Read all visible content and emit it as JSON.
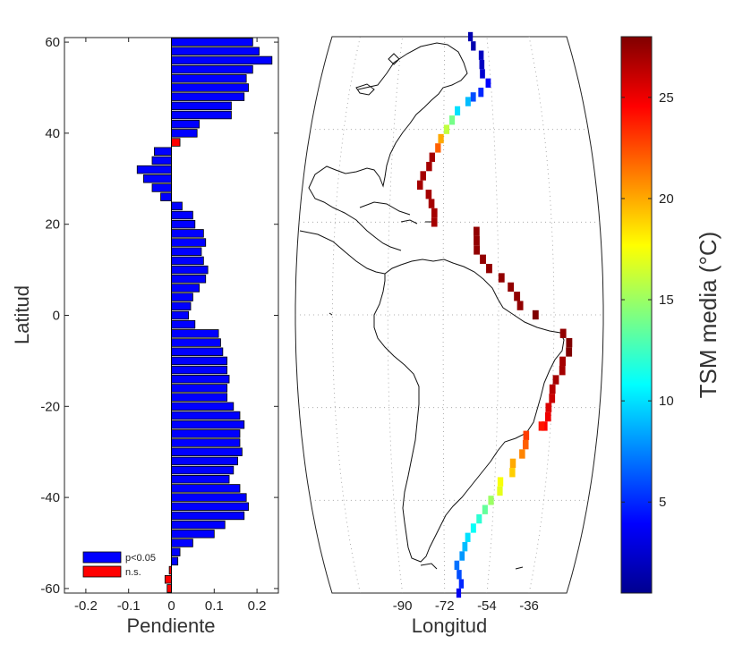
{
  "chart_data": [
    {
      "type": "bar",
      "orientation": "horizontal",
      "xlabel": "Pendiente",
      "ylabel": "Latitud",
      "xlim": [
        -0.25,
        0.25
      ],
      "ylim": [
        -61,
        61
      ],
      "xticks": [
        -0.2,
        -0.1,
        0,
        0.1,
        0.2
      ],
      "xtick_labels": [
        "-0.2",
        "-0.1",
        "0",
        "0.1",
        "0.2"
      ],
      "yticks": [
        -60,
        -40,
        -20,
        0,
        20,
        40,
        60
      ],
      "ytick_labels": [
        "-60",
        "-40",
        "-20",
        "0",
        "20",
        "40",
        "60"
      ],
      "bar_height_deg": 1.7,
      "legend": {
        "location": "bottom-left",
        "entries": [
          {
            "label": "p<0.05",
            "color": "#0000ff"
          },
          {
            "label": "n.s.",
            "color": "#ff0000"
          }
        ]
      },
      "bars": [
        {
          "lat": 60,
          "value": 0.19,
          "sig": true
        },
        {
          "lat": 58,
          "value": 0.205,
          "sig": true
        },
        {
          "lat": 56,
          "value": 0.235,
          "sig": true
        },
        {
          "lat": 54,
          "value": 0.19,
          "sig": true
        },
        {
          "lat": 52,
          "value": 0.175,
          "sig": true
        },
        {
          "lat": 50,
          "value": 0.18,
          "sig": true
        },
        {
          "lat": 48,
          "value": 0.17,
          "sig": true
        },
        {
          "lat": 46,
          "value": 0.14,
          "sig": true
        },
        {
          "lat": 44,
          "value": 0.14,
          "sig": true
        },
        {
          "lat": 42,
          "value": 0.065,
          "sig": true
        },
        {
          "lat": 40,
          "value": 0.06,
          "sig": true
        },
        {
          "lat": 38,
          "value": 0.02,
          "sig": false
        },
        {
          "lat": 36,
          "value": -0.04,
          "sig": true
        },
        {
          "lat": 34,
          "value": -0.045,
          "sig": true
        },
        {
          "lat": 32,
          "value": -0.08,
          "sig": true
        },
        {
          "lat": 30,
          "value": -0.065,
          "sig": true
        },
        {
          "lat": 28,
          "value": -0.045,
          "sig": true
        },
        {
          "lat": 26,
          "value": -0.025,
          "sig": true
        },
        {
          "lat": 24,
          "value": 0.025,
          "sig": true
        },
        {
          "lat": 22,
          "value": 0.05,
          "sig": true
        },
        {
          "lat": 20,
          "value": 0.055,
          "sig": true
        },
        {
          "lat": 18,
          "value": 0.075,
          "sig": true
        },
        {
          "lat": 16,
          "value": 0.08,
          "sig": true
        },
        {
          "lat": 14,
          "value": 0.07,
          "sig": true
        },
        {
          "lat": 12,
          "value": 0.075,
          "sig": true
        },
        {
          "lat": 10,
          "value": 0.085,
          "sig": true
        },
        {
          "lat": 8,
          "value": 0.08,
          "sig": true
        },
        {
          "lat": 6,
          "value": 0.065,
          "sig": true
        },
        {
          "lat": 4,
          "value": 0.05,
          "sig": true
        },
        {
          "lat": 2,
          "value": 0.045,
          "sig": true
        },
        {
          "lat": 0,
          "value": 0.04,
          "sig": true
        },
        {
          "lat": -2,
          "value": 0.055,
          "sig": true
        },
        {
          "lat": -4,
          "value": 0.11,
          "sig": true
        },
        {
          "lat": -6,
          "value": 0.115,
          "sig": true
        },
        {
          "lat": -8,
          "value": 0.12,
          "sig": true
        },
        {
          "lat": -10,
          "value": 0.13,
          "sig": true
        },
        {
          "lat": -12,
          "value": 0.13,
          "sig": true
        },
        {
          "lat": -14,
          "value": 0.135,
          "sig": true
        },
        {
          "lat": -16,
          "value": 0.13,
          "sig": true
        },
        {
          "lat": -18,
          "value": 0.13,
          "sig": true
        },
        {
          "lat": -20,
          "value": 0.145,
          "sig": true
        },
        {
          "lat": -22,
          "value": 0.16,
          "sig": true
        },
        {
          "lat": -24,
          "value": 0.17,
          "sig": true
        },
        {
          "lat": -26,
          "value": 0.16,
          "sig": true
        },
        {
          "lat": -28,
          "value": 0.16,
          "sig": true
        },
        {
          "lat": -30,
          "value": 0.165,
          "sig": true
        },
        {
          "lat": -32,
          "value": 0.155,
          "sig": true
        },
        {
          "lat": -34,
          "value": 0.145,
          "sig": true
        },
        {
          "lat": -36,
          "value": 0.135,
          "sig": true
        },
        {
          "lat": -38,
          "value": 0.16,
          "sig": true
        },
        {
          "lat": -40,
          "value": 0.175,
          "sig": true
        },
        {
          "lat": -42,
          "value": 0.18,
          "sig": true
        },
        {
          "lat": -44,
          "value": 0.17,
          "sig": true
        },
        {
          "lat": -46,
          "value": 0.125,
          "sig": true
        },
        {
          "lat": -48,
          "value": 0.1,
          "sig": true
        },
        {
          "lat": -50,
          "value": 0.05,
          "sig": true
        },
        {
          "lat": -52,
          "value": 0.02,
          "sig": true
        },
        {
          "lat": -54,
          "value": 0.015,
          "sig": true
        },
        {
          "lat": -56,
          "value": -0.005,
          "sig": false
        },
        {
          "lat": -58,
          "value": -0.015,
          "sig": false
        },
        {
          "lat": -60,
          "value": -0.01,
          "sig": false
        }
      ]
    },
    {
      "type": "map",
      "xlabel": "Longitud",
      "xticks": [
        -90,
        -72,
        -54,
        -36
      ],
      "xtick_labels": [
        "-90",
        "-72",
        "-54",
        "-36"
      ],
      "lon_range": [
        -120,
        -20
      ],
      "lat_range": [
        -60,
        60
      ],
      "cell_size_deg": 2,
      "colorbar": {
        "label": "TSM media (°C)",
        "range": [
          0.5,
          28
        ],
        "ticks": [
          5,
          10,
          15,
          20,
          25
        ],
        "tick_labels": [
          "5",
          "10",
          "15",
          "20",
          "25"
        ],
        "colormap": "jet"
      },
      "cells": [
        {
          "lon": -61,
          "lat": 60,
          "sst": 1.5
        },
        {
          "lon": -60,
          "lat": 58,
          "sst": 1.5
        },
        {
          "lon": -57,
          "lat": 56,
          "sst": 2
        },
        {
          "lon": -57,
          "lat": 54,
          "sst": 2
        },
        {
          "lon": -57,
          "lat": 52,
          "sst": 2.5
        },
        {
          "lon": -55,
          "lat": 50,
          "sst": 4
        },
        {
          "lon": -58,
          "lat": 48,
          "sst": 5
        },
        {
          "lon": -61,
          "lat": 47,
          "sst": 6
        },
        {
          "lon": -63,
          "lat": 46,
          "sst": 9
        },
        {
          "lon": -67,
          "lat": 44,
          "sst": 10
        },
        {
          "lon": -69,
          "lat": 42,
          "sst": 14
        },
        {
          "lon": -71,
          "lat": 40,
          "sst": 16
        },
        {
          "lon": -73,
          "lat": 38,
          "sst": 20
        },
        {
          "lon": -74,
          "lat": 36,
          "sst": 22
        },
        {
          "lon": -76,
          "lat": 34,
          "sst": 27
        },
        {
          "lon": -77,
          "lat": 32,
          "sst": 27
        },
        {
          "lon": -79,
          "lat": 30,
          "sst": 27
        },
        {
          "lon": -80,
          "lat": 28,
          "sst": 27
        },
        {
          "lon": -77,
          "lat": 26,
          "sst": 27
        },
        {
          "lon": -76,
          "lat": 24,
          "sst": 27
        },
        {
          "lon": -75,
          "lat": 22,
          "sst": 27
        },
        {
          "lon": -75,
          "lat": 20,
          "sst": 27
        },
        {
          "lon": -61,
          "lat": 18,
          "sst": 27.5
        },
        {
          "lon": -61,
          "lat": 16,
          "sst": 27.5
        },
        {
          "lon": -61,
          "lat": 14,
          "sst": 27.5
        },
        {
          "lon": -59,
          "lat": 12,
          "sst": 27.5
        },
        {
          "lon": -57,
          "lat": 10,
          "sst": 27.5
        },
        {
          "lon": -53,
          "lat": 8,
          "sst": 27.5
        },
        {
          "lon": -50,
          "lat": 6,
          "sst": 27.5
        },
        {
          "lon": -48,
          "lat": 4,
          "sst": 27.5
        },
        {
          "lon": -47,
          "lat": 2,
          "sst": 27.5
        },
        {
          "lon": -42,
          "lat": 0,
          "sst": 28
        },
        {
          "lon": -33,
          "lat": -4,
          "sst": 27.5
        },
        {
          "lon": -31,
          "lat": -6,
          "sst": 28
        },
        {
          "lon": -31,
          "lat": -8,
          "sst": 28
        },
        {
          "lon": -33,
          "lat": -10,
          "sst": 27
        },
        {
          "lon": -33,
          "lat": -12,
          "sst": 27
        },
        {
          "lon": -35,
          "lat": -14,
          "sst": 27
        },
        {
          "lon": -36,
          "lat": -16,
          "sst": 26.5
        },
        {
          "lon": -36,
          "lat": -18,
          "sst": 26
        },
        {
          "lon": -37,
          "lat": -20,
          "sst": 25.5
        },
        {
          "lon": -37,
          "lat": -22,
          "sst": 25
        },
        {
          "lon": -38,
          "lat": -24,
          "sst": 24.5
        },
        {
          "lon": -39,
          "lat": -24,
          "sst": 24
        },
        {
          "lon": -44,
          "lat": -26,
          "sst": 23
        },
        {
          "lon": -44,
          "lat": -28,
          "sst": 22
        },
        {
          "lon": -45,
          "lat": -30,
          "sst": 21
        },
        {
          "lon": -48,
          "lat": -32,
          "sst": 20
        },
        {
          "lon": -48,
          "lat": -34,
          "sst": 19
        },
        {
          "lon": -52,
          "lat": -36,
          "sst": 17.5
        },
        {
          "lon": -52,
          "lat": -38,
          "sst": 17
        },
        {
          "lon": -55,
          "lat": -40,
          "sst": 15
        },
        {
          "lon": -57,
          "lat": -42,
          "sst": 13.5
        },
        {
          "lon": -59,
          "lat": -44,
          "sst": 12
        },
        {
          "lon": -61,
          "lat": -46,
          "sst": 11
        },
        {
          "lon": -63,
          "lat": -48,
          "sst": 10
        },
        {
          "lon": -64,
          "lat": -50,
          "sst": 9
        },
        {
          "lon": -65,
          "lat": -52,
          "sst": 8
        },
        {
          "lon": -67,
          "lat": -54,
          "sst": 7
        },
        {
          "lon": -66,
          "lat": -56,
          "sst": 6
        },
        {
          "lon": -65,
          "lat": -58,
          "sst": 5
        },
        {
          "lon": -66,
          "lat": -60,
          "sst": 3.5
        }
      ]
    }
  ]
}
